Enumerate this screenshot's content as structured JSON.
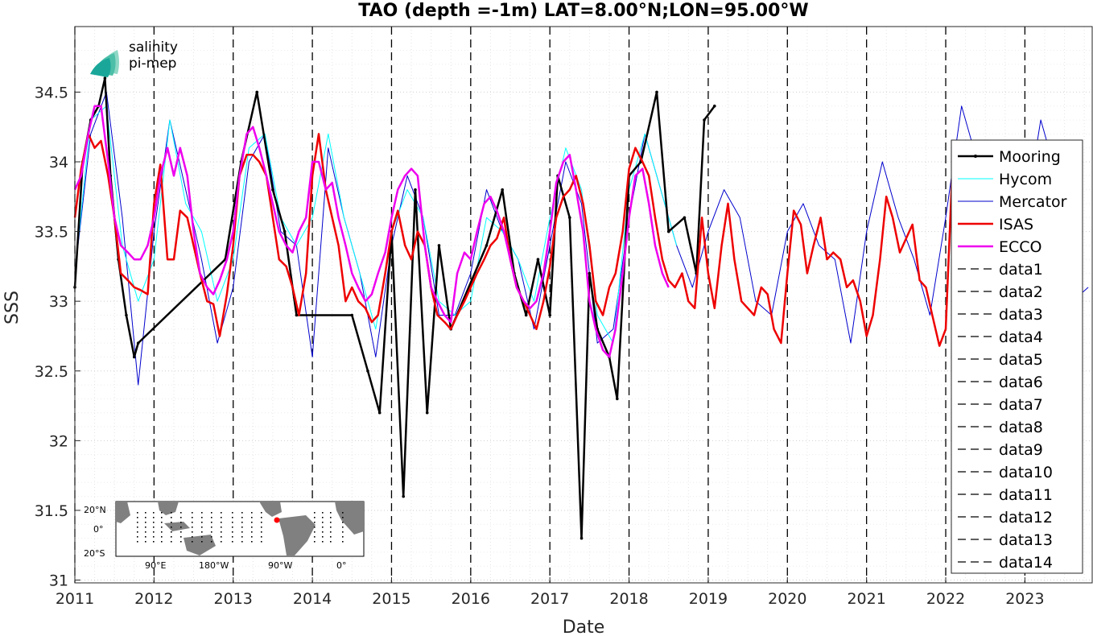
{
  "chart_data": {
    "type": "line",
    "title": "TAO (depth =-1m) LAT=8.00°N;LON=95.00°W",
    "xlabel": "Date",
    "ylabel": "SSS",
    "xlim": [
      2011.0,
      2023.85
    ],
    "ylim": [
      30.98,
      34.97
    ],
    "xticks": [
      "2011",
      "2012",
      "2013",
      "2014",
      "2015",
      "2016",
      "2017",
      "2018",
      "2019",
      "2020",
      "2021",
      "2022",
      "2023"
    ],
    "yticks": [
      "31",
      "31.5",
      "32",
      "32.5",
      "33",
      "33.5",
      "34",
      "34.5"
    ],
    "grid": true,
    "legend_position": "right",
    "year_boundaries": [
      2011,
      2012,
      2013,
      2014,
      2015,
      2016,
      2017,
      2018,
      2019,
      2020,
      2021,
      2022,
      2023
    ],
    "series": [
      {
        "name": "Mooring",
        "color": "#000000",
        "x": [
          2011.0,
          2011.1,
          2011.2,
          2011.3,
          2011.38,
          2011.45,
          2011.55,
          2011.65,
          2011.75,
          2011.8,
          2012.9,
          2013.1,
          2013.3,
          2013.5,
          2013.65,
          2013.8,
          2014.5,
          2014.7,
          2014.85,
          2015.0,
          2015.15,
          2015.3,
          2015.45,
          2015.6,
          2015.75,
          2016.2,
          2016.4,
          2016.55,
          2016.7,
          2016.85,
          2017.0,
          2017.1,
          2017.25,
          2017.4,
          2017.5,
          2017.6,
          2017.75,
          2017.85,
          2018.0,
          2018.15,
          2018.35,
          2018.5,
          2018.7,
          2018.85,
          2018.95,
          2019.08
        ],
        "y": [
          33.1,
          34.0,
          34.3,
          34.4,
          34.6,
          33.9,
          33.3,
          32.9,
          32.6,
          32.7,
          33.3,
          34.0,
          34.5,
          33.8,
          33.5,
          32.9,
          32.9,
          32.5,
          32.2,
          33.5,
          31.6,
          33.8,
          32.2,
          33.4,
          32.8,
          33.4,
          33.8,
          33.2,
          32.9,
          33.3,
          32.9,
          33.9,
          33.6,
          31.3,
          33.2,
          32.8,
          32.6,
          32.3,
          33.9,
          34.0,
          34.5,
          33.5,
          33.6,
          33.2,
          34.3,
          34.4
        ]
      },
      {
        "name": "Hycom",
        "color": "#00ffff",
        "x": [
          2011.0,
          2011.2,
          2011.4,
          2011.6,
          2011.8,
          2012.0,
          2012.2,
          2012.4,
          2012.6,
          2012.8,
          2013.0,
          2013.2,
          2013.4,
          2013.6,
          2013.8,
          2014.0,
          2014.2,
          2014.4,
          2014.6,
          2014.8,
          2015.0,
          2015.2,
          2015.4,
          2015.6,
          2015.8,
          2016.0,
          2016.2,
          2016.4,
          2016.6,
          2016.8,
          2017.0,
          2017.2,
          2017.4,
          2017.6,
          2017.8,
          2018.0,
          2018.2,
          2018.4,
          2018.6
        ],
        "y": [
          33.2,
          34.3,
          34.4,
          33.4,
          33.0,
          33.3,
          34.3,
          33.7,
          33.5,
          33.0,
          33.3,
          34.1,
          34.2,
          33.6,
          33.4,
          33.6,
          34.2,
          33.6,
          33.2,
          32.8,
          33.5,
          33.8,
          33.6,
          33.0,
          32.9,
          33.0,
          33.6,
          33.5,
          33.3,
          33.0,
          33.6,
          34.1,
          33.8,
          32.9,
          32.7,
          33.8,
          34.2,
          33.8,
          33.4
        ]
      },
      {
        "name": "Mercator",
        "color": "#0000cd",
        "x": [
          2011.0,
          2011.2,
          2011.4,
          2011.6,
          2011.8,
          2012.0,
          2012.2,
          2012.4,
          2012.6,
          2012.8,
          2013.0,
          2013.2,
          2013.4,
          2013.6,
          2013.8,
          2014.0,
          2014.2,
          2014.4,
          2014.6,
          2014.8,
          2015.0,
          2015.2,
          2015.4,
          2015.6,
          2015.8,
          2016.0,
          2016.2,
          2016.4,
          2016.6,
          2016.8,
          2017.0,
          2017.2,
          2017.4,
          2017.6,
          2017.8,
          2018.0,
          2018.2,
          2018.4,
          2018.6,
          2018.8,
          2019.0,
          2019.2,
          2019.4,
          2019.6,
          2019.8,
          2020.0,
          2020.2,
          2020.4,
          2020.6,
          2020.8,
          2021.0,
          2021.2,
          2021.4,
          2021.6,
          2021.8,
          2022.0,
          2022.2,
          2022.4,
          2022.6,
          2022.8,
          2023.0,
          2023.2,
          2023.4,
          2023.6,
          2023.8
        ],
        "y": [
          33.2,
          34.2,
          34.5,
          33.6,
          32.4,
          33.5,
          34.3,
          33.8,
          33.3,
          32.7,
          33.1,
          34.0,
          34.2,
          33.5,
          33.4,
          32.6,
          34.1,
          33.6,
          33.2,
          32.6,
          33.4,
          33.9,
          33.6,
          32.9,
          32.9,
          33.2,
          33.8,
          33.5,
          33.3,
          32.8,
          33.4,
          34.0,
          33.7,
          32.7,
          32.8,
          33.6,
          34.2,
          33.8,
          33.4,
          33.1,
          33.5,
          33.8,
          33.6,
          33.0,
          32.9,
          33.5,
          33.7,
          33.4,
          33.3,
          32.7,
          33.5,
          34.0,
          33.6,
          33.3,
          32.9,
          33.6,
          34.4,
          34.0,
          33.5,
          33.3,
          33.6,
          34.3,
          33.9,
          33.0,
          33.1
        ]
      },
      {
        "name": "ISAS",
        "color": "#ee0000",
        "x": [
          2011.0,
          2011.08,
          2011.17,
          2011.25,
          2011.33,
          2011.42,
          2011.5,
          2011.58,
          2011.67,
          2011.75,
          2011.83,
          2011.92,
          2012.0,
          2012.08,
          2012.17,
          2012.25,
          2012.33,
          2012.42,
          2012.5,
          2012.58,
          2012.67,
          2012.75,
          2012.83,
          2012.92,
          2013.0,
          2013.08,
          2013.17,
          2013.25,
          2013.33,
          2013.42,
          2013.5,
          2013.58,
          2013.67,
          2013.75,
          2013.83,
          2013.92,
          2014.0,
          2014.08,
          2014.17,
          2014.25,
          2014.33,
          2014.42,
          2014.5,
          2014.58,
          2014.67,
          2014.75,
          2014.83,
          2014.92,
          2015.0,
          2015.08,
          2015.17,
          2015.25,
          2015.33,
          2015.42,
          2015.5,
          2015.58,
          2015.67,
          2015.75,
          2015.83,
          2015.92,
          2016.0,
          2016.08,
          2016.17,
          2016.25,
          2016.33,
          2016.42,
          2016.5,
          2016.58,
          2016.67,
          2016.75,
          2016.83,
          2016.92,
          2017.0,
          2017.08,
          2017.17,
          2017.25,
          2017.33,
          2017.42,
          2017.5,
          2017.58,
          2017.67,
          2017.75,
          2017.83,
          2017.92,
          2018.0,
          2018.08,
          2018.17,
          2018.25,
          2018.33,
          2018.42,
          2018.5,
          2018.58,
          2018.67,
          2018.75,
          2018.83,
          2018.92,
          2019.0,
          2019.08,
          2019.17,
          2019.25,
          2019.33,
          2019.42,
          2019.5,
          2019.58,
          2019.67,
          2019.75,
          2019.83,
          2019.92,
          2020.0,
          2020.08,
          2020.17,
          2020.25,
          2020.33,
          2020.42,
          2020.5,
          2020.58,
          2020.67,
          2020.75,
          2020.83,
          2020.92,
          2021.0,
          2021.08,
          2021.17,
          2021.25,
          2021.33,
          2021.42,
          2021.5,
          2021.58,
          2021.67,
          2021.75,
          2021.83,
          2021.92,
          2022.0,
          2022.08
        ],
        "y": [
          33.6,
          33.95,
          34.2,
          34.1,
          34.15,
          33.9,
          33.6,
          33.2,
          33.15,
          33.1,
          33.08,
          33.05,
          33.7,
          33.98,
          33.3,
          33.3,
          33.65,
          33.6,
          33.4,
          33.2,
          33.0,
          32.98,
          32.75,
          33.05,
          33.4,
          33.9,
          34.05,
          34.05,
          34.0,
          33.9,
          33.6,
          33.3,
          33.25,
          33.1,
          32.9,
          33.2,
          33.9,
          34.2,
          33.8,
          33.6,
          33.4,
          33.0,
          33.1,
          33.0,
          32.95,
          32.85,
          32.9,
          33.2,
          33.5,
          33.65,
          33.4,
          33.3,
          33.5,
          33.4,
          33.1,
          32.9,
          32.85,
          32.8,
          32.9,
          33.0,
          33.1,
          33.2,
          33.3,
          33.4,
          33.45,
          33.6,
          33.3,
          33.1,
          33.0,
          32.9,
          32.8,
          33.0,
          33.25,
          33.6,
          33.75,
          33.8,
          33.9,
          33.7,
          33.4,
          33.0,
          32.9,
          33.1,
          33.2,
          33.5,
          33.95,
          34.1,
          34.0,
          33.9,
          33.6,
          33.3,
          33.15,
          33.1,
          33.2,
          33.0,
          32.95,
          33.6,
          33.2,
          32.95,
          33.4,
          33.7,
          33.3,
          33.0,
          32.95,
          32.9,
          33.1,
          33.05,
          32.8,
          32.7,
          33.2,
          33.65,
          33.55,
          33.2,
          33.4,
          33.6,
          33.3,
          33.35,
          33.3,
          33.1,
          33.15,
          33.0,
          32.75,
          32.9,
          33.3,
          33.75,
          33.6,
          33.35,
          33.45,
          33.55,
          33.15,
          33.1,
          32.9,
          32.68,
          32.8,
          33.9
        ]
      },
      {
        "name": "ECCO",
        "color": "#ee00ee",
        "x": [
          2011.0,
          2011.08,
          2011.17,
          2011.25,
          2011.33,
          2011.42,
          2011.5,
          2011.58,
          2011.67,
          2011.75,
          2011.83,
          2011.92,
          2012.0,
          2012.08,
          2012.17,
          2012.25,
          2012.33,
          2012.42,
          2012.5,
          2012.58,
          2012.67,
          2012.75,
          2012.83,
          2012.92,
          2013.0,
          2013.08,
          2013.17,
          2013.25,
          2013.33,
          2013.42,
          2013.5,
          2013.58,
          2013.67,
          2013.75,
          2013.83,
          2013.92,
          2014.0,
          2014.08,
          2014.17,
          2014.25,
          2014.33,
          2014.42,
          2014.5,
          2014.58,
          2014.67,
          2014.75,
          2014.83,
          2014.92,
          2015.0,
          2015.08,
          2015.17,
          2015.25,
          2015.33,
          2015.42,
          2015.5,
          2015.58,
          2015.67,
          2015.75,
          2015.83,
          2015.92,
          2016.0,
          2016.08,
          2016.17,
          2016.25,
          2016.33,
          2016.42,
          2016.5,
          2016.58,
          2016.67,
          2016.75,
          2016.83,
          2016.92,
          2017.0,
          2017.08,
          2017.17,
          2017.25,
          2017.33,
          2017.42,
          2017.5,
          2017.58,
          2017.67,
          2017.75,
          2017.83,
          2017.92,
          2018.0,
          2018.08,
          2018.17,
          2018.25,
          2018.33,
          2018.42,
          2018.5
        ],
        "y": [
          33.8,
          33.9,
          34.2,
          34.4,
          34.4,
          34.0,
          33.6,
          33.4,
          33.35,
          33.3,
          33.3,
          33.4,
          33.6,
          33.9,
          34.1,
          33.9,
          34.1,
          33.9,
          33.5,
          33.2,
          33.1,
          33.05,
          33.15,
          33.3,
          33.5,
          33.9,
          34.2,
          34.25,
          34.1,
          33.9,
          33.7,
          33.5,
          33.4,
          33.35,
          33.5,
          33.6,
          34.0,
          34.0,
          33.8,
          33.85,
          33.6,
          33.4,
          33.2,
          33.1,
          33.0,
          33.05,
          33.2,
          33.35,
          33.6,
          33.8,
          33.9,
          33.95,
          33.9,
          33.4,
          33.1,
          33.0,
          32.9,
          32.85,
          33.2,
          33.35,
          33.3,
          33.5,
          33.7,
          33.75,
          33.65,
          33.5,
          33.3,
          33.1,
          33.0,
          32.95,
          33.0,
          33.2,
          33.5,
          33.85,
          34.0,
          34.05,
          33.8,
          33.5,
          33.0,
          32.8,
          32.65,
          32.6,
          32.8,
          33.2,
          33.6,
          33.9,
          33.95,
          33.7,
          33.4,
          33.2,
          33.1
        ]
      }
    ]
  },
  "legend": {
    "items": [
      {
        "label": "Mooring",
        "color": "#000000",
        "style": "marker-line",
        "width": 2.5
      },
      {
        "label": "Hycom",
        "color": "#00ffff",
        "style": "solid",
        "width": 1
      },
      {
        "label": "Mercator",
        "color": "#0000cd",
        "style": "solid",
        "width": 1
      },
      {
        "label": "ISAS",
        "color": "#ee0000",
        "style": "solid",
        "width": 2.5
      },
      {
        "label": "ECCO",
        "color": "#ee00ee",
        "style": "solid",
        "width": 2.5
      },
      {
        "label": "data1",
        "color": "#000000",
        "style": "dashed",
        "width": 1.3
      },
      {
        "label": "data2",
        "color": "#000000",
        "style": "dashed",
        "width": 1.3
      },
      {
        "label": "data3",
        "color": "#000000",
        "style": "dashed",
        "width": 1.3
      },
      {
        "label": "data4",
        "color": "#000000",
        "style": "dashed",
        "width": 1.3
      },
      {
        "label": "data5",
        "color": "#000000",
        "style": "dashed",
        "width": 1.3
      },
      {
        "label": "data6",
        "color": "#000000",
        "style": "dashed",
        "width": 1.3
      },
      {
        "label": "data7",
        "color": "#000000",
        "style": "dashed",
        "width": 1.3
      },
      {
        "label": "data8",
        "color": "#000000",
        "style": "dashed",
        "width": 1.3
      },
      {
        "label": "data9",
        "color": "#000000",
        "style": "dashed",
        "width": 1.3
      },
      {
        "label": "data10",
        "color": "#000000",
        "style": "dashed",
        "width": 1.3
      },
      {
        "label": "data11",
        "color": "#000000",
        "style": "dashed",
        "width": 1.3
      },
      {
        "label": "data12",
        "color": "#000000",
        "style": "dashed",
        "width": 1.3
      },
      {
        "label": "data13",
        "color": "#000000",
        "style": "dashed",
        "width": 1.3
      },
      {
        "label": "data14",
        "color": "#000000",
        "style": "dashed",
        "width": 1.3
      }
    ]
  },
  "logo": {
    "line1": "salinity",
    "line2": "pi-mep",
    "color1": "#1aa79a",
    "color2": "#1f6f6a"
  },
  "inset_map": {
    "y_labels": [
      "20°N",
      "0°",
      "20°S"
    ],
    "x_labels": [
      "90°E",
      "180°W",
      "90°W",
      "0°"
    ],
    "ocean_color": "#ffffff",
    "land_color": "#808080",
    "marker_color": "#ff0000"
  }
}
